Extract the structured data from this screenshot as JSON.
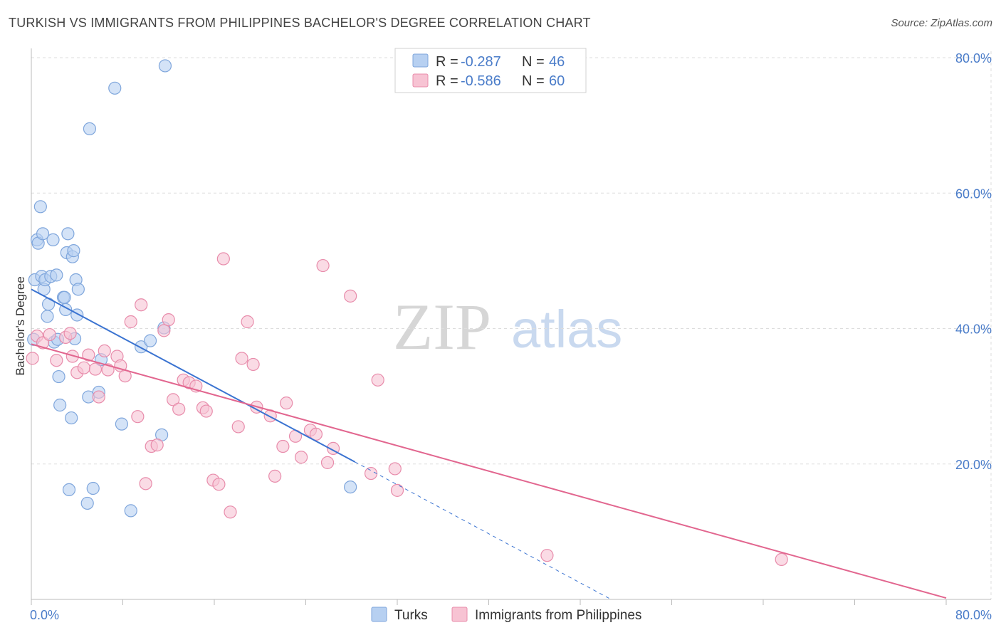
{
  "header": {
    "title": "TURKISH VS IMMIGRANTS FROM PHILIPPINES BACHELOR'S DEGREE CORRELATION CHART",
    "source": "Source: ZipAtlas.com"
  },
  "watermark": {
    "zip": "ZIP",
    "atlas": "atlas"
  },
  "colors": {
    "turks_fill": "#b7d0f1",
    "turks_stroke": "#7fa6dc",
    "turks_line": "#3a73d1",
    "phil_fill": "#f7c3d3",
    "phil_stroke": "#e88cab",
    "phil_line": "#e2668f",
    "grid": "#dddddd",
    "axis_text": "#4a7cc9"
  },
  "legend": {
    "turks": {
      "r_label": "R = ",
      "r_value": "-0.287",
      "n_label": "N = ",
      "n_value": "46"
    },
    "phil": {
      "r_label": "R = ",
      "r_value": "-0.586",
      "n_label": "N = ",
      "n_value": "60"
    }
  },
  "chart_data": {
    "type": "scatter",
    "title": "TURKISH VS IMMIGRANTS FROM PHILIPPINES BACHELOR'S DEGREE CORRELATION CHART",
    "xlabel": "",
    "ylabel": "Bachelor's Degree",
    "xlim": [
      0,
      80
    ],
    "ylim": [
      0,
      82
    ],
    "x_tick_labels": [
      "0.0%",
      "80.0%"
    ],
    "y_ticks": [
      20,
      40,
      60,
      80
    ],
    "y_tick_labels": [
      "20.0%",
      "40.0%",
      "60.0%",
      "80.0%"
    ],
    "grid": true,
    "legend_position": "top-center",
    "series": [
      {
        "name": "Turks",
        "points": [
          [
            0.2,
            38.4
          ],
          [
            0.3,
            47.2
          ],
          [
            0.5,
            53.1
          ],
          [
            0.6,
            52.6
          ],
          [
            0.8,
            58.0
          ],
          [
            0.9,
            47.7
          ],
          [
            1.0,
            54.0
          ],
          [
            1.1,
            45.8
          ],
          [
            1.2,
            47.2
          ],
          [
            1.4,
            41.8
          ],
          [
            1.5,
            43.6
          ],
          [
            1.7,
            47.7
          ],
          [
            1.9,
            53.1
          ],
          [
            2.0,
            38.0
          ],
          [
            2.2,
            47.9
          ],
          [
            2.3,
            38.4
          ],
          [
            2.4,
            32.9
          ],
          [
            2.5,
            28.7
          ],
          [
            2.8,
            44.6
          ],
          [
            2.9,
            44.6
          ],
          [
            3.0,
            42.8
          ],
          [
            3.1,
            51.2
          ],
          [
            3.2,
            54.0
          ],
          [
            3.3,
            16.2
          ],
          [
            3.5,
            26.8
          ],
          [
            3.6,
            50.6
          ],
          [
            3.7,
            51.5
          ],
          [
            3.8,
            38.5
          ],
          [
            3.9,
            47.2
          ],
          [
            4.0,
            42.0
          ],
          [
            4.1,
            45.8
          ],
          [
            4.9,
            14.2
          ],
          [
            5.0,
            29.9
          ],
          [
            5.1,
            69.5
          ],
          [
            5.4,
            16.4
          ],
          [
            5.9,
            30.6
          ],
          [
            6.1,
            35.4
          ],
          [
            7.3,
            75.5
          ],
          [
            7.9,
            25.9
          ],
          [
            8.7,
            13.1
          ],
          [
            9.6,
            37.3
          ],
          [
            10.4,
            38.2
          ],
          [
            11.4,
            24.3
          ],
          [
            11.6,
            40.1
          ],
          [
            11.7,
            78.8
          ],
          [
            27.9,
            16.6
          ]
        ]
      },
      {
        "name": "Immigrants from Philippines",
        "points": [
          [
            0.1,
            35.6
          ],
          [
            0.5,
            38.9
          ],
          [
            1.0,
            37.9
          ],
          [
            1.6,
            39.1
          ],
          [
            2.2,
            35.3
          ],
          [
            3.0,
            38.7
          ],
          [
            3.4,
            39.3
          ],
          [
            3.6,
            35.9
          ],
          [
            4.0,
            33.5
          ],
          [
            4.6,
            34.2
          ],
          [
            5.0,
            36.1
          ],
          [
            5.6,
            34.0
          ],
          [
            5.9,
            29.9
          ],
          [
            6.4,
            36.7
          ],
          [
            6.7,
            33.9
          ],
          [
            7.5,
            35.9
          ],
          [
            7.8,
            34.5
          ],
          [
            8.2,
            33.0
          ],
          [
            8.7,
            41.0
          ],
          [
            9.3,
            27.0
          ],
          [
            9.6,
            43.5
          ],
          [
            10.0,
            17.1
          ],
          [
            10.5,
            22.6
          ],
          [
            11.0,
            22.8
          ],
          [
            11.6,
            39.7
          ],
          [
            12.0,
            41.3
          ],
          [
            12.4,
            29.5
          ],
          [
            12.9,
            28.1
          ],
          [
            13.3,
            32.4
          ],
          [
            13.8,
            32.0
          ],
          [
            14.4,
            31.5
          ],
          [
            15.0,
            28.3
          ],
          [
            15.3,
            27.8
          ],
          [
            15.9,
            17.6
          ],
          [
            16.4,
            17.0
          ],
          [
            16.8,
            50.3
          ],
          [
            17.4,
            12.9
          ],
          [
            18.1,
            25.5
          ],
          [
            18.4,
            35.6
          ],
          [
            18.9,
            41.0
          ],
          [
            19.4,
            34.7
          ],
          [
            19.7,
            28.4
          ],
          [
            20.9,
            27.1
          ],
          [
            21.3,
            18.2
          ],
          [
            22.0,
            22.6
          ],
          [
            22.3,
            29.0
          ],
          [
            23.1,
            24.1
          ],
          [
            23.6,
            21.0
          ],
          [
            24.4,
            25.0
          ],
          [
            24.9,
            24.4
          ],
          [
            25.5,
            49.3
          ],
          [
            25.9,
            20.2
          ],
          [
            26.4,
            22.3
          ],
          [
            27.9,
            44.8
          ],
          [
            29.7,
            18.6
          ],
          [
            30.3,
            32.4
          ],
          [
            31.8,
            19.3
          ],
          [
            32.0,
            16.1
          ],
          [
            45.1,
            6.5
          ],
          [
            65.6,
            5.9
          ]
        ]
      }
    ],
    "trendlines": [
      {
        "series": "Turks",
        "x": [
          0,
          28.3
        ],
        "y": [
          45.8,
          20.3
        ],
        "dashed_extension_to": [
          50.7,
          0
        ]
      },
      {
        "series": "Immigrants from Philippines",
        "x": [
          0,
          80
        ],
        "y": [
          37.7,
          0.2
        ]
      }
    ]
  },
  "bottom_legend": {
    "turks_label": "Turks",
    "phil_label": "Immigrants from Philippines"
  }
}
